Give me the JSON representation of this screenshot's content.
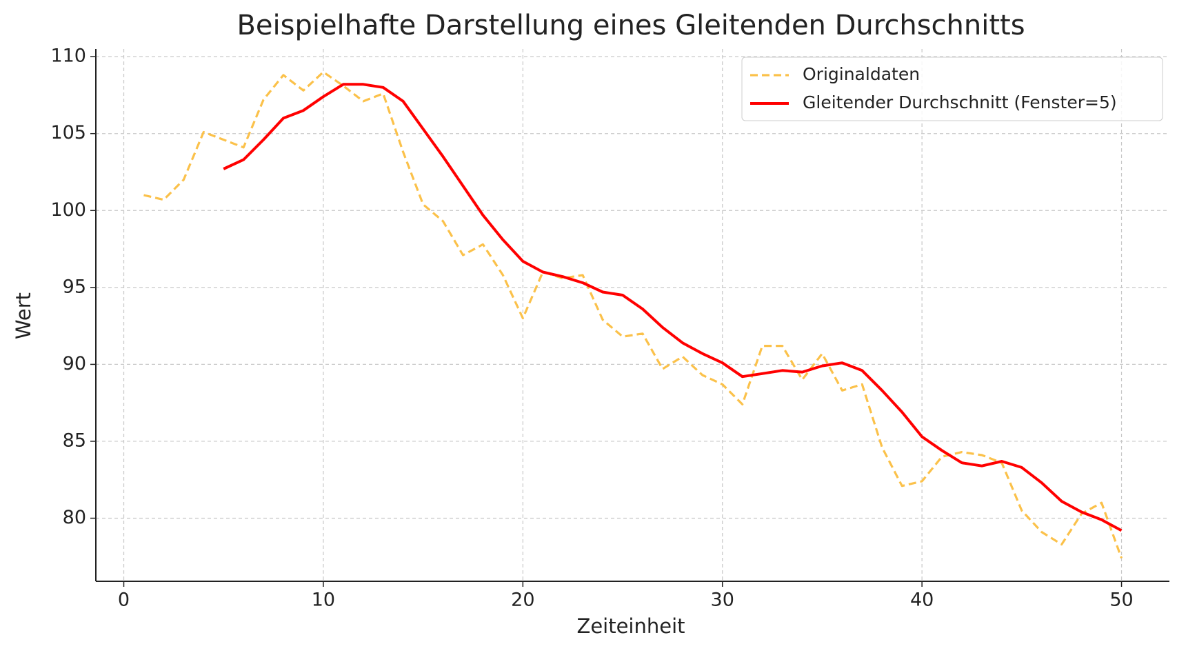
{
  "chart_data": {
    "type": "line",
    "title": "Beispielhafte Darstellung eines Gleitenden Durchschnitts",
    "x_label": "Zeiteinheit",
    "y_label": "Wert",
    "x": [
      1,
      2,
      3,
      4,
      5,
      6,
      7,
      8,
      9,
      10,
      11,
      12,
      13,
      14,
      15,
      16,
      17,
      18,
      19,
      20,
      21,
      22,
      23,
      24,
      25,
      26,
      27,
      28,
      29,
      30,
      31,
      32,
      33,
      34,
      35,
      36,
      37,
      38,
      39,
      40,
      41,
      42,
      43,
      44,
      45,
      46,
      47,
      48,
      49,
      50
    ],
    "series": [
      {
        "name": "Originaldaten",
        "color": "#fbc14a",
        "dash": true,
        "values": [
          101.0,
          100.7,
          102.0,
          105.1,
          104.6,
          104.1,
          107.2,
          108.8,
          107.8,
          109.0,
          108.1,
          107.1,
          107.6,
          103.8,
          100.4,
          99.3,
          97.1,
          97.8,
          95.8,
          93.0,
          96.0,
          95.6,
          95.8,
          92.9,
          91.8,
          92.0,
          89.7,
          90.5,
          89.3,
          88.7,
          87.4,
          91.2,
          91.2,
          89.0,
          90.7,
          88.3,
          88.7,
          84.6,
          82.1,
          82.4,
          84.0,
          84.3,
          84.1,
          83.6,
          80.5,
          79.1,
          78.3,
          80.3,
          81.0,
          77.4
        ]
      },
      {
        "name": "Gleitender Durchschnitt (Fenster=5)",
        "color": "#ff0000",
        "dash": false,
        "values": [
          null,
          null,
          null,
          null,
          102.7,
          103.3,
          104.6,
          106.0,
          106.5,
          107.4,
          108.2,
          108.2,
          108.0,
          107.1,
          105.3,
          103.5,
          101.6,
          99.7,
          98.1,
          96.7,
          96.0,
          95.7,
          95.3,
          94.7,
          94.5,
          93.6,
          92.4,
          91.4,
          90.7,
          90.1,
          89.2,
          89.4,
          89.6,
          89.5,
          89.9,
          90.1,
          89.6,
          88.3,
          86.9,
          85.3,
          84.4,
          83.6,
          83.4,
          83.7,
          83.3,
          82.3,
          81.1,
          80.4,
          79.9,
          79.2
        ]
      }
    ],
    "xlim": [
      -1.4,
      52.4
    ],
    "ylim": [
      75.9,
      110.5
    ],
    "xticks": [
      0,
      10,
      20,
      30,
      40,
      50
    ],
    "yticks": [
      80,
      85,
      90,
      95,
      100,
      105,
      110
    ],
    "grid": true,
    "legend": "upper right"
  }
}
